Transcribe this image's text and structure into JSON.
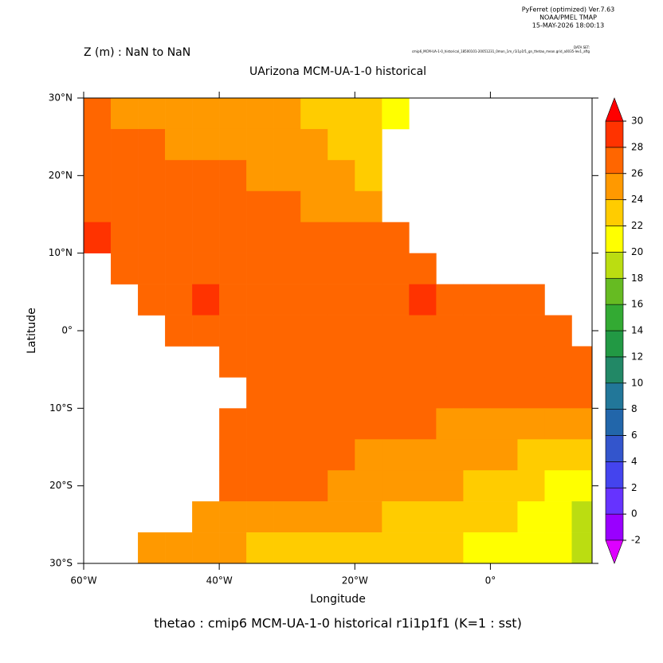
{
  "header": {
    "program": "PyFerret (optimized) Ver.7.63",
    "org": "NOAA/PMEL TMAP",
    "date": "15-MAY-2026 18:00:13",
    "dataset_label": "DATA SET:",
    "dataset": "cmip6_MCM-UA-1-0_historical_18500101-20051231_0mon_1m_r1i1p1f1_gn_thetao_mean.grid_a0035-lev1_aftg"
  },
  "chart_data": {
    "type": "heatmap",
    "subtitle": "Z (m) : NaN to NaN",
    "title": "UArizona MCM-UA-1-0 historical",
    "x_label": "Longitude",
    "y_label": "Latitude",
    "caption": "thetao : cmip6 MCM-UA-1-0 historical r1i1p1f1   (K=1 : sst)",
    "xlim": [
      -60,
      15
    ],
    "ylim": [
      -30,
      30
    ],
    "xticks": [
      {
        "value": -60,
        "label": "60°W"
      },
      {
        "value": -40,
        "label": "40°W"
      },
      {
        "value": -20,
        "label": "20°W"
      },
      {
        "value": 0,
        "label": "0°"
      }
    ],
    "yticks": [
      {
        "value": 30,
        "label": "30°N"
      },
      {
        "value": 20,
        "label": "20°N"
      },
      {
        "value": 10,
        "label": "10°N"
      },
      {
        "value": 0,
        "label": "0°"
      },
      {
        "value": -10,
        "label": "10°S"
      },
      {
        "value": -20,
        "label": "20°S"
      },
      {
        "value": -30,
        "label": "30°S"
      }
    ],
    "x": [
      -58,
      -54,
      -50,
      -46,
      -42,
      -38,
      -34,
      -30,
      -26,
      -22,
      -18,
      -14,
      -10,
      -6,
      -2,
      2,
      6,
      10,
      14
    ],
    "y": [
      28,
      24,
      20,
      16,
      12,
      8,
      4,
      0,
      -4,
      -8,
      -12,
      -16,
      -20,
      -24,
      -28
    ],
    "z": [
      [
        26,
        25.5,
        25,
        25,
        25,
        24.5,
        24.5,
        24,
        23.5,
        23,
        22.5,
        21,
        null,
        null,
        null,
        null,
        null,
        null,
        null
      ],
      [
        27,
        26.5,
        26,
        25.5,
        25.5,
        25,
        25,
        24.5,
        24,
        23.5,
        22.5,
        null,
        null,
        null,
        null,
        null,
        null,
        null,
        null
      ],
      [
        27,
        27,
        26.5,
        26,
        26,
        26,
        25.5,
        25,
        24.5,
        24,
        23,
        null,
        null,
        null,
        null,
        null,
        null,
        null,
        null
      ],
      [
        27.5,
        27,
        27,
        26.5,
        26.5,
        26.5,
        26,
        26,
        25.5,
        25,
        24.5,
        null,
        null,
        null,
        null,
        null,
        null,
        null,
        null
      ],
      [
        28,
        27.5,
        27.5,
        27,
        27,
        27,
        27,
        26.5,
        26.5,
        26.5,
        26.5,
        26,
        null,
        null,
        null,
        null,
        null,
        null,
        null
      ],
      [
        null,
        27.5,
        27.5,
        27.5,
        27.5,
        27.5,
        27,
        27.5,
        27.5,
        27.5,
        27.5,
        27.5,
        27.5,
        null,
        null,
        null,
        null,
        null,
        null
      ],
      [
        null,
        null,
        27.5,
        27.5,
        28,
        27.5,
        27.5,
        27.5,
        27.5,
        27.5,
        27.5,
        27.5,
        28,
        27.5,
        27.5,
        27.5,
        27.5,
        null,
        null
      ],
      [
        null,
        null,
        null,
        27.5,
        27.5,
        27.5,
        27.5,
        27.5,
        27.5,
        27.5,
        27.5,
        27,
        27,
        27,
        27,
        27,
        27,
        27,
        null
      ],
      [
        null,
        null,
        null,
        null,
        null,
        27.5,
        27.5,
        27.5,
        27.5,
        27.5,
        27,
        27,
        27,
        27,
        27,
        27,
        26.5,
        26.5,
        26.5
      ],
      [
        null,
        null,
        null,
        null,
        null,
        null,
        27.5,
        27.5,
        27.5,
        27,
        27,
        27,
        26.5,
        26.5,
        26.5,
        26,
        26,
        26,
        26
      ],
      [
        null,
        null,
        null,
        null,
        null,
        27,
        27.5,
        27,
        27,
        26.5,
        26.5,
        26,
        26,
        25.5,
        25.5,
        25,
        25,
        25,
        25
      ],
      [
        null,
        null,
        null,
        null,
        null,
        27,
        26.5,
        26.5,
        26,
        26,
        25.5,
        25,
        24.5,
        24.5,
        24,
        24,
        23.5,
        23,
        22.5
      ],
      [
        null,
        null,
        null,
        null,
        null,
        26.5,
        26.5,
        26,
        26,
        25.5,
        25,
        24.5,
        24,
        24,
        23.5,
        23,
        22,
        21,
        20.5
      ],
      [
        null,
        null,
        null,
        null,
        25,
        25,
        25,
        25,
        24.5,
        24,
        24,
        23.5,
        23,
        23,
        22.5,
        22,
        21.5,
        20.5,
        19.5
      ],
      [
        null,
        null,
        24,
        24,
        24,
        24,
        23.5,
        23.5,
        23.5,
        23,
        23,
        22.5,
        22,
        22,
        21.5,
        21,
        20.5,
        20,
        19
      ]
    ],
    "zlim": [
      -2,
      30
    ],
    "zticks": [
      -2,
      0,
      2,
      4,
      6,
      8,
      10,
      12,
      14,
      16,
      18,
      20,
      22,
      24,
      26,
      28,
      30
    ],
    "colors": [
      "#9900ff",
      "#6633ff",
      "#4444ee",
      "#3355cc",
      "#2266aa",
      "#227799",
      "#228866",
      "#229944",
      "#33aa33",
      "#66bb22",
      "#bbdd11",
      "#ffff00",
      "#ffcc00",
      "#ff9900",
      "#ff6600",
      "#ff3300"
    ],
    "under_color": "#dd00ff",
    "over_color": "#ff0000"
  }
}
